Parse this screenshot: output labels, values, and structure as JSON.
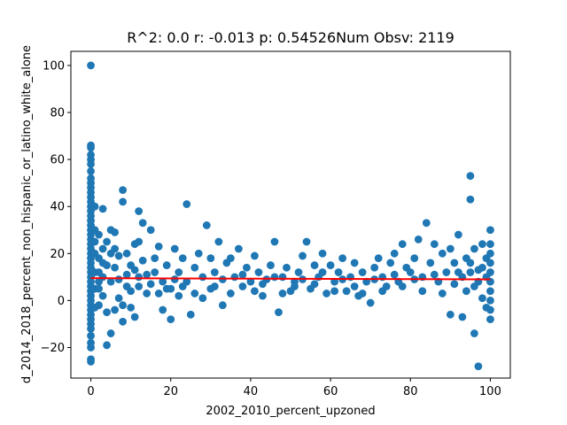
{
  "chart_data": {
    "type": "scatter",
    "title": "R^2: 0.0 r: -0.013 p: 0.54526Num Obsv: 2119",
    "xlabel": "2002_2010_percent_upzoned",
    "ylabel": "d_2014_2018_percent_non_hispanic_or_latino_white_alone",
    "xlim": [
      -5,
      105
    ],
    "ylim": [
      -33,
      106
    ],
    "xticks": [
      0,
      20,
      40,
      60,
      80,
      100
    ],
    "yticks": [
      -20,
      0,
      20,
      40,
      60,
      80,
      100
    ],
    "point_color": "#1f77b4",
    "fit_color": "#ff0000",
    "fit_line": {
      "x": [
        0,
        100
      ],
      "y": [
        9.5,
        9.0
      ]
    },
    "series": [
      {
        "name": "observations",
        "points": [
          [
            0,
            100
          ],
          [
            0,
            66
          ],
          [
            0,
            65
          ],
          [
            0,
            62
          ],
          [
            0,
            60
          ],
          [
            0,
            58
          ],
          [
            0,
            55
          ],
          [
            0,
            52
          ],
          [
            0,
            50
          ],
          [
            0,
            48
          ],
          [
            0,
            46
          ],
          [
            0,
            44
          ],
          [
            0,
            42
          ],
          [
            0,
            40
          ],
          [
            0,
            38
          ],
          [
            0,
            36
          ],
          [
            0,
            34
          ],
          [
            0,
            32
          ],
          [
            0,
            30
          ],
          [
            0,
            28
          ],
          [
            0,
            26
          ],
          [
            0,
            24
          ],
          [
            0,
            22
          ],
          [
            0,
            20
          ],
          [
            0,
            18
          ],
          [
            0,
            16
          ],
          [
            0,
            14
          ],
          [
            0,
            12
          ],
          [
            0,
            10
          ],
          [
            0,
            8
          ],
          [
            0,
            6
          ],
          [
            0,
            4
          ],
          [
            0,
            2
          ],
          [
            0,
            0
          ],
          [
            0,
            -2
          ],
          [
            0,
            -4
          ],
          [
            0,
            -6
          ],
          [
            0,
            -8
          ],
          [
            0,
            -10
          ],
          [
            0,
            -12
          ],
          [
            0,
            -15
          ],
          [
            0,
            -18
          ],
          [
            0,
            -20
          ],
          [
            0,
            -25
          ],
          [
            0,
            -26
          ],
          [
            1,
            40
          ],
          [
            1,
            30
          ],
          [
            1,
            25
          ],
          [
            1,
            20
          ],
          [
            1,
            12
          ],
          [
            1,
            5
          ],
          [
            1,
            -3
          ],
          [
            2,
            28
          ],
          [
            2,
            18
          ],
          [
            2,
            8
          ],
          [
            2,
            -2
          ],
          [
            2,
            12
          ],
          [
            3,
            39
          ],
          [
            3,
            22
          ],
          [
            3,
            10
          ],
          [
            3,
            2
          ],
          [
            4,
            25
          ],
          [
            4,
            15
          ],
          [
            4,
            -5
          ],
          [
            4,
            -19
          ],
          [
            5,
            30
          ],
          [
            5,
            20
          ],
          [
            5,
            -14
          ],
          [
            6,
            29
          ],
          [
            6,
            14
          ],
          [
            6,
            -4
          ],
          [
            7,
            19
          ],
          [
            7,
            9
          ],
          [
            8,
            47
          ],
          [
            8,
            42
          ],
          [
            8,
            -2
          ],
          [
            8,
            -9
          ],
          [
            9,
            20
          ],
          [
            9,
            11
          ],
          [
            10,
            15
          ],
          [
            10,
            4
          ],
          [
            11,
            13
          ],
          [
            11,
            -7
          ],
          [
            12,
            38
          ],
          [
            12,
            25
          ],
          [
            12,
            6
          ],
          [
            13,
            33
          ],
          [
            13,
            17
          ],
          [
            14,
            11
          ],
          [
            15,
            30
          ],
          [
            15,
            7
          ],
          [
            16,
            18
          ],
          [
            17,
            23
          ],
          [
            17,
            3
          ],
          [
            18,
            8
          ],
          [
            18,
            -4
          ],
          [
            19,
            15
          ],
          [
            20,
            5
          ],
          [
            20,
            -8
          ],
          [
            21,
            22
          ],
          [
            22,
            12
          ],
          [
            22,
            2
          ],
          [
            23,
            18
          ],
          [
            24,
            41
          ],
          [
            24,
            8
          ],
          [
            25,
            -6
          ],
          [
            26,
            14
          ],
          [
            27,
            20
          ],
          [
            28,
            10
          ],
          [
            29,
            32
          ],
          [
            30,
            18
          ],
          [
            30,
            5
          ],
          [
            31,
            12
          ],
          [
            32,
            25
          ],
          [
            33,
            -2
          ],
          [
            34,
            16
          ],
          [
            35,
            18
          ],
          [
            36,
            10
          ],
          [
            37,
            22
          ],
          [
            38,
            6
          ],
          [
            39,
            14
          ],
          [
            40,
            8
          ],
          [
            41,
            19
          ],
          [
            42,
            12
          ],
          [
            43,
            2
          ],
          [
            44,
            9
          ],
          [
            45,
            15
          ],
          [
            46,
            25
          ],
          [
            47,
            -5
          ],
          [
            48,
            10
          ],
          [
            49,
            14
          ],
          [
            50,
            4
          ],
          [
            51,
            8
          ],
          [
            52,
            12
          ],
          [
            53,
            19
          ],
          [
            54,
            25
          ],
          [
            55,
            5
          ],
          [
            56,
            15
          ],
          [
            57,
            10
          ],
          [
            58,
            20
          ],
          [
            59,
            3
          ],
          [
            60,
            15
          ],
          [
            61,
            8
          ],
          [
            62,
            12
          ],
          [
            63,
            18
          ],
          [
            64,
            4
          ],
          [
            65,
            10
          ],
          [
            66,
            16
          ],
          [
            67,
            2
          ],
          [
            68,
            12
          ],
          [
            69,
            8
          ],
          [
            70,
            -1
          ],
          [
            71,
            14
          ],
          [
            72,
            18
          ],
          [
            73,
            10
          ],
          [
            74,
            6
          ],
          [
            75,
            16
          ],
          [
            76,
            20
          ],
          [
            77,
            8
          ],
          [
            78,
            24
          ],
          [
            79,
            14
          ],
          [
            80,
            12
          ],
          [
            81,
            18
          ],
          [
            82,
            26
          ],
          [
            83,
            10
          ],
          [
            84,
            33
          ],
          [
            85,
            16
          ],
          [
            86,
            24
          ],
          [
            87,
            8
          ],
          [
            88,
            20
          ],
          [
            89,
            12
          ],
          [
            90,
            -6
          ],
          [
            90,
            22
          ],
          [
            91,
            16
          ],
          [
            92,
            28
          ],
          [
            93,
            -7
          ],
          [
            93,
            10
          ],
          [
            94,
            18
          ],
          [
            95,
            53
          ],
          [
            95,
            43
          ],
          [
            95,
            12
          ],
          [
            96,
            -14
          ],
          [
            96,
            22
          ],
          [
            97,
            -28
          ],
          [
            97,
            8
          ],
          [
            98,
            14
          ],
          [
            98,
            24
          ],
          [
            99,
            -3
          ],
          [
            99,
            18
          ],
          [
            100,
            30
          ],
          [
            100,
            24
          ],
          [
            100,
            20
          ],
          [
            100,
            16
          ],
          [
            100,
            12
          ],
          [
            100,
            8
          ],
          [
            100,
            4
          ],
          [
            100,
            0
          ],
          [
            100,
            -4
          ],
          [
            100,
            -8
          ],
          [
            2,
            5
          ],
          [
            3,
            16
          ],
          [
            5,
            8
          ],
          [
            6,
            22
          ],
          [
            7,
            1
          ],
          [
            9,
            6
          ],
          [
            10,
            -3
          ],
          [
            11,
            24
          ],
          [
            12,
            10
          ],
          [
            14,
            3
          ],
          [
            16,
            12
          ],
          [
            19,
            5
          ],
          [
            21,
            9
          ],
          [
            23,
            6
          ],
          [
            26,
            3
          ],
          [
            28,
            1
          ],
          [
            31,
            6
          ],
          [
            33,
            9
          ],
          [
            35,
            3
          ],
          [
            38,
            11
          ],
          [
            41,
            4
          ],
          [
            43,
            7
          ],
          [
            46,
            10
          ],
          [
            48,
            3
          ],
          [
            51,
            6
          ],
          [
            53,
            9
          ],
          [
            56,
            7
          ],
          [
            58,
            12
          ],
          [
            61,
            4
          ],
          [
            63,
            9
          ],
          [
            66,
            6
          ],
          [
            68,
            3
          ],
          [
            71,
            9
          ],
          [
            73,
            4
          ],
          [
            76,
            11
          ],
          [
            78,
            6
          ],
          [
            81,
            9
          ],
          [
            83,
            4
          ],
          [
            86,
            11
          ],
          [
            88,
            3
          ],
          [
            91,
            7
          ],
          [
            92,
            12
          ],
          [
            94,
            4
          ],
          [
            95,
            16
          ],
          [
            96,
            6
          ],
          [
            97,
            13
          ],
          [
            98,
            1
          ],
          [
            99,
            10
          ]
        ]
      }
    ]
  }
}
